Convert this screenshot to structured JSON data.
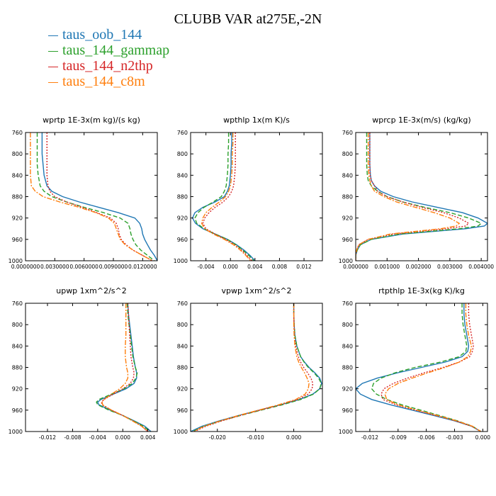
{
  "figure": {
    "title": "CLUBB VAR at275E,-2N"
  },
  "legend": [
    {
      "label": "taus_oob_144",
      "color": "#1f77b4",
      "dash": "solid"
    },
    {
      "label": "taus_144_gammap",
      "color": "#2ca02c",
      "dash": "dashed"
    },
    {
      "label": "taus_144_n2thp",
      "color": "#d62728",
      "dash": "dotted"
    },
    {
      "label": "taus_144_c8m",
      "color": "#ff7f0e",
      "dash": "dashdot"
    }
  ],
  "chart_data": [
    {
      "type": "line",
      "title": "wprtp  1E-3x(m kg)/(s kg)",
      "xlim": [
        0.0,
        0.0135
      ],
      "ylim": [
        760,
        1000
      ],
      "y_inverted": true,
      "xticks": [
        0.0,
        0.003,
        0.006,
        0.009,
        0.012
      ],
      "xtick_labels": [
        "0.0000000",
        "0.0030000",
        "0.0060000",
        "0.0090000",
        "0.0120000"
      ],
      "yticks": [
        760,
        800,
        840,
        880,
        920,
        960,
        1000
      ],
      "ytick_labels": [
        "760",
        "800",
        "840",
        "880",
        "920",
        "960",
        "1000"
      ],
      "y": [
        760,
        780,
        800,
        820,
        840,
        860,
        870,
        880,
        890,
        900,
        910,
        920,
        930,
        940,
        950,
        960,
        970,
        980,
        990,
        1000
      ],
      "series": [
        {
          "name": "taus_oob_144",
          "x": [
            0.0017,
            0.0017,
            0.0017,
            0.0018,
            0.0019,
            0.0022,
            0.0027,
            0.0038,
            0.0055,
            0.0075,
            0.0095,
            0.0112,
            0.0117,
            0.0119,
            0.012,
            0.0122,
            0.0125,
            0.0128,
            0.0132,
            0.0135
          ]
        },
        {
          "name": "taus_144_gammap",
          "x": [
            0.0012,
            0.0012,
            0.0012,
            0.0012,
            0.0013,
            0.0015,
            0.0019,
            0.0027,
            0.0042,
            0.006,
            0.008,
            0.0097,
            0.0105,
            0.0107,
            0.0108,
            0.011,
            0.0113,
            0.0118,
            0.0125,
            0.0132
          ]
        },
        {
          "name": "taus_144_n2thp",
          "x": [
            0.0022,
            0.0022,
            0.0022,
            0.0022,
            0.0022,
            0.0023,
            0.0025,
            0.003,
            0.0042,
            0.0058,
            0.0073,
            0.0087,
            0.0093,
            0.0095,
            0.0096,
            0.0098,
            0.0103,
            0.011,
            0.012,
            0.013
          ]
        },
        {
          "name": "taus_144_c8m",
          "x": [
            0.0005,
            0.0005,
            0.0005,
            0.0005,
            0.0005,
            0.0006,
            0.001,
            0.0018,
            0.0035,
            0.0055,
            0.0072,
            0.0085,
            0.0091,
            0.0093,
            0.0095,
            0.0097,
            0.0102,
            0.011,
            0.012,
            0.013
          ]
        }
      ]
    },
    {
      "type": "line",
      "title": "wpthlp  1x(m K)/s",
      "xlim": [
        -0.0065,
        0.015
      ],
      "ylim": [
        760,
        1000
      ],
      "y_inverted": true,
      "xticks": [
        -0.004,
        0.0,
        0.004,
        0.008,
        0.012
      ],
      "xtick_labels": [
        "-0.004",
        "0.000",
        "0.004",
        "0.008",
        "0.012"
      ],
      "yticks": [
        760,
        800,
        840,
        880,
        920,
        960,
        1000
      ],
      "ytick_labels": [
        "760",
        "800",
        "840",
        "880",
        "920",
        "960",
        "1000"
      ],
      "y": [
        760,
        780,
        800,
        820,
        840,
        860,
        870,
        880,
        890,
        900,
        910,
        920,
        930,
        940,
        950,
        960,
        970,
        980,
        990,
        1000
      ],
      "series": [
        {
          "name": "taus_oob_144",
          "x": [
            0.0002,
            0.0002,
            0.0001,
            0.0001,
            0.0,
            -0.0002,
            -0.0005,
            -0.001,
            -0.0025,
            -0.0045,
            -0.0058,
            -0.0062,
            -0.0057,
            -0.0045,
            -0.0025,
            -0.0005,
            0.001,
            0.0022,
            0.0032,
            0.004
          ]
        },
        {
          "name": "taus_144_gammap",
          "x": [
            -0.0003,
            -0.0003,
            -0.0004,
            -0.0004,
            -0.0005,
            -0.0007,
            -0.001,
            -0.0015,
            -0.0028,
            -0.0043,
            -0.0053,
            -0.0058,
            -0.0055,
            -0.0043,
            -0.0025,
            -0.0005,
            0.0009,
            0.002,
            0.003,
            0.0038
          ]
        },
        {
          "name": "taus_144_n2thp",
          "x": [
            0.0008,
            0.0008,
            0.0008,
            0.0008,
            0.0007,
            0.0005,
            0.0002,
            -0.0003,
            -0.0012,
            -0.0025,
            -0.0035,
            -0.0042,
            -0.0045,
            -0.004,
            -0.0025,
            -0.0008,
            0.0007,
            0.0018,
            0.0027,
            0.0035
          ]
        },
        {
          "name": "taus_144_c8m",
          "x": [
            0.0004,
            0.0004,
            0.0003,
            0.0003,
            0.0002,
            0.0,
            -0.0003,
            -0.0008,
            -0.0018,
            -0.003,
            -0.004,
            -0.0045,
            -0.0047,
            -0.0042,
            -0.0028,
            -0.001,
            0.0005,
            0.0016,
            0.0025,
            0.0033
          ]
        }
      ]
    },
    {
      "type": "line",
      "title": "wprcp  1E-3x(m/s) (kg/kg)",
      "xlim": [
        0.0,
        0.0042
      ],
      "ylim": [
        760,
        1000
      ],
      "y_inverted": true,
      "xticks": [
        0.0,
        0.001,
        0.002,
        0.003,
        0.004
      ],
      "xtick_labels": [
        "0.000000",
        "0.001000",
        "0.002000",
        "0.003000",
        "0.004000"
      ],
      "yticks": [
        760,
        800,
        840,
        880,
        920,
        960,
        1000
      ],
      "ytick_labels": [
        "760",
        "800",
        "840",
        "880",
        "920",
        "960",
        "1000"
      ],
      "y": [
        760,
        780,
        800,
        820,
        840,
        850,
        860,
        870,
        880,
        890,
        900,
        910,
        920,
        930,
        935,
        940,
        950,
        960,
        970,
        980,
        990,
        1000
      ],
      "series": [
        {
          "name": "taus_oob_144",
          "x": [
            0.00045,
            0.00045,
            0.00045,
            0.00045,
            0.00047,
            0.0005,
            0.0006,
            0.0008,
            0.0012,
            0.0018,
            0.0026,
            0.0034,
            0.0039,
            0.0042,
            0.0041,
            0.0035,
            0.0015,
            0.0005,
            0.00015,
            5e-05,
            0.0,
            0.0
          ]
        },
        {
          "name": "taus_144_gammap",
          "x": [
            0.00035,
            0.00035,
            0.00035,
            0.00035,
            0.00037,
            0.0004,
            0.0005,
            0.0007,
            0.001,
            0.0015,
            0.0022,
            0.003,
            0.0036,
            0.004,
            0.0039,
            0.0033,
            0.0014,
            0.0005,
            0.00015,
            5e-05,
            0.0,
            0.0
          ]
        },
        {
          "name": "taus_144_n2thp",
          "x": [
            0.00045,
            0.00045,
            0.00045,
            0.00045,
            0.00046,
            0.0005,
            0.0006,
            0.0007,
            0.001,
            0.0015,
            0.0021,
            0.0028,
            0.0033,
            0.0036,
            0.0035,
            0.0029,
            0.0012,
            0.0004,
            0.0001,
            3e-05,
            0.0,
            0.0
          ]
        },
        {
          "name": "taus_144_c8m",
          "x": [
            0.0004,
            0.0004,
            0.0004,
            0.0004,
            0.00042,
            0.00045,
            0.0005,
            0.0006,
            0.0009,
            0.0013,
            0.0019,
            0.0025,
            0.003,
            0.0033,
            0.0032,
            0.0027,
            0.0011,
            0.0004,
            0.0001,
            3e-05,
            0.0,
            0.0
          ]
        }
      ]
    },
    {
      "type": "line",
      "title": "upwp  1xm^2/s^2",
      "xlim": [
        -0.0155,
        0.0055
      ],
      "ylim": [
        760,
        1000
      ],
      "y_inverted": true,
      "xticks": [
        -0.012,
        -0.008,
        -0.004,
        0.0,
        0.004
      ],
      "xtick_labels": [
        "-0.012",
        "-0.008",
        "-0.004",
        "0.000",
        "0.004"
      ],
      "yticks": [
        760,
        800,
        840,
        880,
        920,
        960,
        1000
      ],
      "ytick_labels": [
        "760",
        "800",
        "840",
        "880",
        "920",
        "960",
        "1000"
      ],
      "y": [
        760,
        780,
        800,
        820,
        840,
        860,
        880,
        890,
        900,
        910,
        920,
        930,
        940,
        945,
        950,
        960,
        970,
        980,
        990,
        1000
      ],
      "series": [
        {
          "name": "taus_oob_144",
          "x": [
            0.0008,
            0.0009,
            0.0011,
            0.0013,
            0.0015,
            0.0017,
            0.002,
            0.0022,
            0.0022,
            0.0018,
            0.0005,
            -0.0015,
            -0.0035,
            -0.004,
            -0.0038,
            -0.002,
            0.0,
            0.0018,
            0.0035,
            0.0045
          ]
        },
        {
          "name": "taus_144_gammap",
          "x": [
            0.0007,
            0.0008,
            0.001,
            0.0012,
            0.0014,
            0.0016,
            0.002,
            0.0023,
            0.0021,
            0.0015,
            0.0002,
            -0.0018,
            -0.0038,
            -0.0042,
            -0.004,
            -0.0022,
            0.0,
            0.0017,
            0.0033,
            0.0043
          ]
        },
        {
          "name": "taus_144_n2thp",
          "x": [
            0.0008,
            0.0009,
            0.001,
            0.0011,
            0.0012,
            0.0013,
            0.0016,
            0.0018,
            0.0017,
            0.0012,
            0.0,
            -0.0015,
            -0.003,
            -0.0034,
            -0.0033,
            -0.0018,
            0.0,
            0.0016,
            0.003,
            0.004
          ]
        },
        {
          "name": "taus_144_c8m",
          "x": [
            0.0005,
            0.0005,
            0.0005,
            0.0005,
            0.0004,
            0.0004,
            0.0006,
            0.0008,
            0.0008,
            0.0004,
            -0.0005,
            -0.0018,
            -0.003,
            -0.0033,
            -0.0032,
            -0.0018,
            0.0,
            0.0015,
            0.003,
            0.004
          ]
        }
      ]
    },
    {
      "type": "line",
      "title": "vpwp  1xm^2/s^2",
      "xlim": [
        -0.027,
        0.0075
      ],
      "ylim": [
        760,
        1000
      ],
      "y_inverted": true,
      "xticks": [
        -0.02,
        -0.01,
        0.0
      ],
      "xtick_labels": [
        "-0.020",
        "-0.010",
        "0.000"
      ],
      "yticks": [
        760,
        800,
        840,
        880,
        920,
        960,
        1000
      ],
      "ytick_labels": [
        "760",
        "800",
        "840",
        "880",
        "920",
        "960",
        "1000"
      ],
      "y": [
        760,
        780,
        800,
        820,
        840,
        860,
        870,
        880,
        890,
        900,
        910,
        920,
        930,
        940,
        950,
        960,
        970,
        980,
        990,
        1000
      ],
      "series": [
        {
          "name": "taus_oob_144",
          "x": [
            0.0,
            0.0,
            0.0001,
            0.0003,
            0.0008,
            0.0018,
            0.0028,
            0.004,
            0.0055,
            0.0068,
            0.0073,
            0.0068,
            0.005,
            0.0015,
            -0.0035,
            -0.009,
            -0.0145,
            -0.0195,
            -0.024,
            -0.027
          ]
        },
        {
          "name": "taus_144_gammap",
          "x": [
            0.0,
            0.0,
            0.0001,
            0.0003,
            0.0008,
            0.0018,
            0.0027,
            0.0038,
            0.0053,
            0.0065,
            0.0072,
            0.0068,
            0.0052,
            0.0018,
            -0.003,
            -0.0085,
            -0.014,
            -0.019,
            -0.0235,
            -0.0265
          ]
        },
        {
          "name": "taus_144_n2thp",
          "x": [
            0.0,
            0.0,
            0.0001,
            0.0002,
            0.0005,
            0.0012,
            0.0018,
            0.0026,
            0.0036,
            0.0045,
            0.005,
            0.0048,
            0.0038,
            0.001,
            -0.0035,
            -0.0088,
            -0.014,
            -0.0188,
            -0.023,
            -0.026
          ]
        },
        {
          "name": "taus_144_c8m",
          "x": [
            0.0,
            0.0,
            0.0,
            0.0001,
            0.0003,
            0.0008,
            0.0013,
            0.002,
            0.0028,
            0.0035,
            0.004,
            0.0038,
            0.003,
            0.0005,
            -0.004,
            -0.0092,
            -0.0145,
            -0.0192,
            -0.0235,
            -0.0262
          ]
        }
      ]
    },
    {
      "type": "line",
      "title": "rtpthlp  1E-3x(kg K)/kg",
      "xlim": [
        -0.0135,
        0.0005
      ],
      "ylim": [
        760,
        1000
      ],
      "y_inverted": true,
      "xticks": [
        -0.012,
        -0.009,
        -0.006,
        -0.003,
        0.0
      ],
      "xtick_labels": [
        "-0.012",
        "-0.009",
        "-0.006",
        "-0.003",
        "0.000"
      ],
      "yticks": [
        760,
        800,
        840,
        880,
        920,
        960,
        1000
      ],
      "ytick_labels": [
        "760",
        "800",
        "840",
        "880",
        "920",
        "960",
        "1000"
      ],
      "y": [
        760,
        780,
        800,
        820,
        840,
        850,
        860,
        870,
        880,
        890,
        900,
        910,
        920,
        930,
        940,
        950,
        960,
        970,
        980,
        990,
        1000
      ],
      "series": [
        {
          "name": "taus_oob_144",
          "x": [
            -0.002,
            -0.002,
            -0.0019,
            -0.0017,
            -0.0015,
            -0.0016,
            -0.0022,
            -0.004,
            -0.0065,
            -0.009,
            -0.0112,
            -0.0128,
            -0.0135,
            -0.013,
            -0.0118,
            -0.0098,
            -0.0075,
            -0.0052,
            -0.003,
            -0.0012,
            -0.0002
          ]
        },
        {
          "name": "taus_144_gammap",
          "x": [
            -0.0022,
            -0.0022,
            -0.0021,
            -0.0019,
            -0.0017,
            -0.0018,
            -0.0025,
            -0.0045,
            -0.0072,
            -0.0093,
            -0.0108,
            -0.0116,
            -0.0118,
            -0.0113,
            -0.0102,
            -0.0086,
            -0.0066,
            -0.0046,
            -0.0027,
            -0.0011,
            -0.0002
          ]
        },
        {
          "name": "taus_144_n2thp",
          "x": [
            -0.0015,
            -0.0015,
            -0.0014,
            -0.0012,
            -0.001,
            -0.0011,
            -0.0014,
            -0.0025,
            -0.0042,
            -0.0062,
            -0.008,
            -0.0095,
            -0.0105,
            -0.0108,
            -0.0106,
            -0.0092,
            -0.0072,
            -0.005,
            -0.0029,
            -0.0012,
            -0.0002
          ]
        },
        {
          "name": "taus_144_c8m",
          "x": [
            -0.0018,
            -0.0018,
            -0.0017,
            -0.0015,
            -0.0012,
            -0.0013,
            -0.0016,
            -0.0025,
            -0.004,
            -0.0058,
            -0.0075,
            -0.009,
            -0.01,
            -0.0104,
            -0.0102,
            -0.009,
            -0.007,
            -0.0048,
            -0.0028,
            -0.0011,
            -0.0002
          ]
        }
      ]
    }
  ]
}
